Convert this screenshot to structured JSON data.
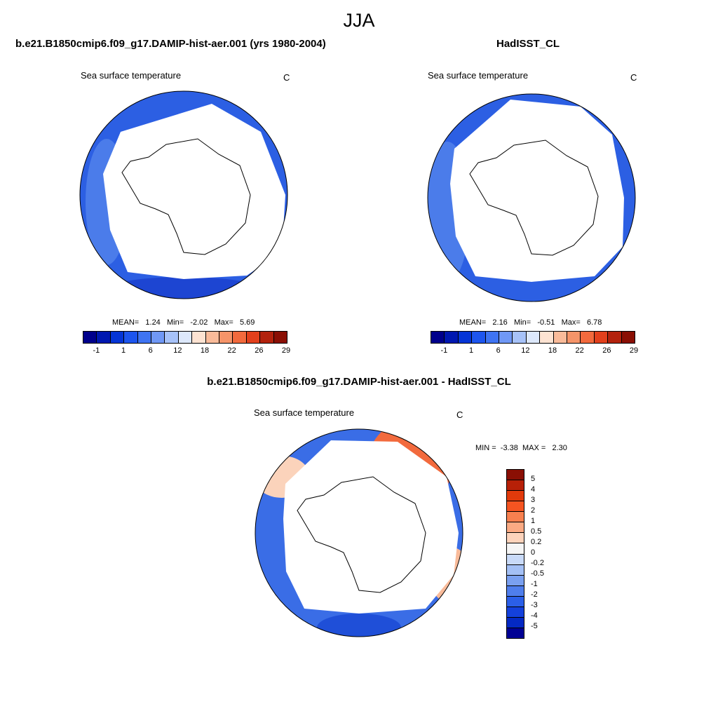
{
  "figure": {
    "title": "JJA",
    "units": "C"
  },
  "panels": {
    "left": {
      "title": "b.e21.B1850cmip6.f09_g17.DAMIP-hist-aer.001 (yrs 1980-2004)",
      "subtitle": "Sea surface temperature",
      "units": "C",
      "mean_label": "MEAN=",
      "mean": "1.24",
      "min_label": "Min=",
      "min": "-2.02",
      "max_label": "Max=",
      "max": "5.69"
    },
    "right": {
      "title": "HadISST_CL",
      "subtitle": "Sea surface temperature",
      "units": "C",
      "mean_label": "MEAN=",
      "mean": "2.16",
      "min_label": "Min=",
      "min": "-0.51",
      "max_label": "Max=",
      "max": "6.78"
    },
    "diff": {
      "title": "b.e21.B1850cmip6.f09_g17.DAMIP-hist-aer.001 - HadISST_CL",
      "subtitle": "Sea surface temperature",
      "units": "C",
      "min_label": "MIN =",
      "min": "-3.38",
      "max_label": "MAX =",
      "max": "2.30"
    }
  },
  "colorbar_abs": {
    "colors": [
      "#00008b",
      "#0018b0",
      "#0535d6",
      "#1d55ee",
      "#3f74f2",
      "#7098f5",
      "#a7c2f8",
      "#dde8fb",
      "#fde3d2",
      "#f9bb9a",
      "#f59469",
      "#f26a3d",
      "#e2401c",
      "#b3220d",
      "#8a0f04"
    ],
    "tick_labels": [
      "-1",
      "1",
      "6",
      "12",
      "18",
      "22",
      "26",
      "29"
    ]
  },
  "colorbar_diff": {
    "colors": [
      "#8a0f04",
      "#b72007",
      "#e23a0b",
      "#f55421",
      "#f8804f",
      "#fbaa83",
      "#fdd3bb",
      "#f5f5f5",
      "#c9daf8",
      "#a4c0f5",
      "#7aa0f0",
      "#4f7eec",
      "#2b5fe8",
      "#1441dc",
      "#0429c4",
      "#000094"
    ],
    "tick_labels": [
      "5",
      "4",
      "3",
      "2",
      "1",
      "0.5",
      "0.2",
      "0",
      "-0.2",
      "-0.5",
      "-1",
      "-2",
      "-3",
      "-4",
      "-5"
    ]
  }
}
